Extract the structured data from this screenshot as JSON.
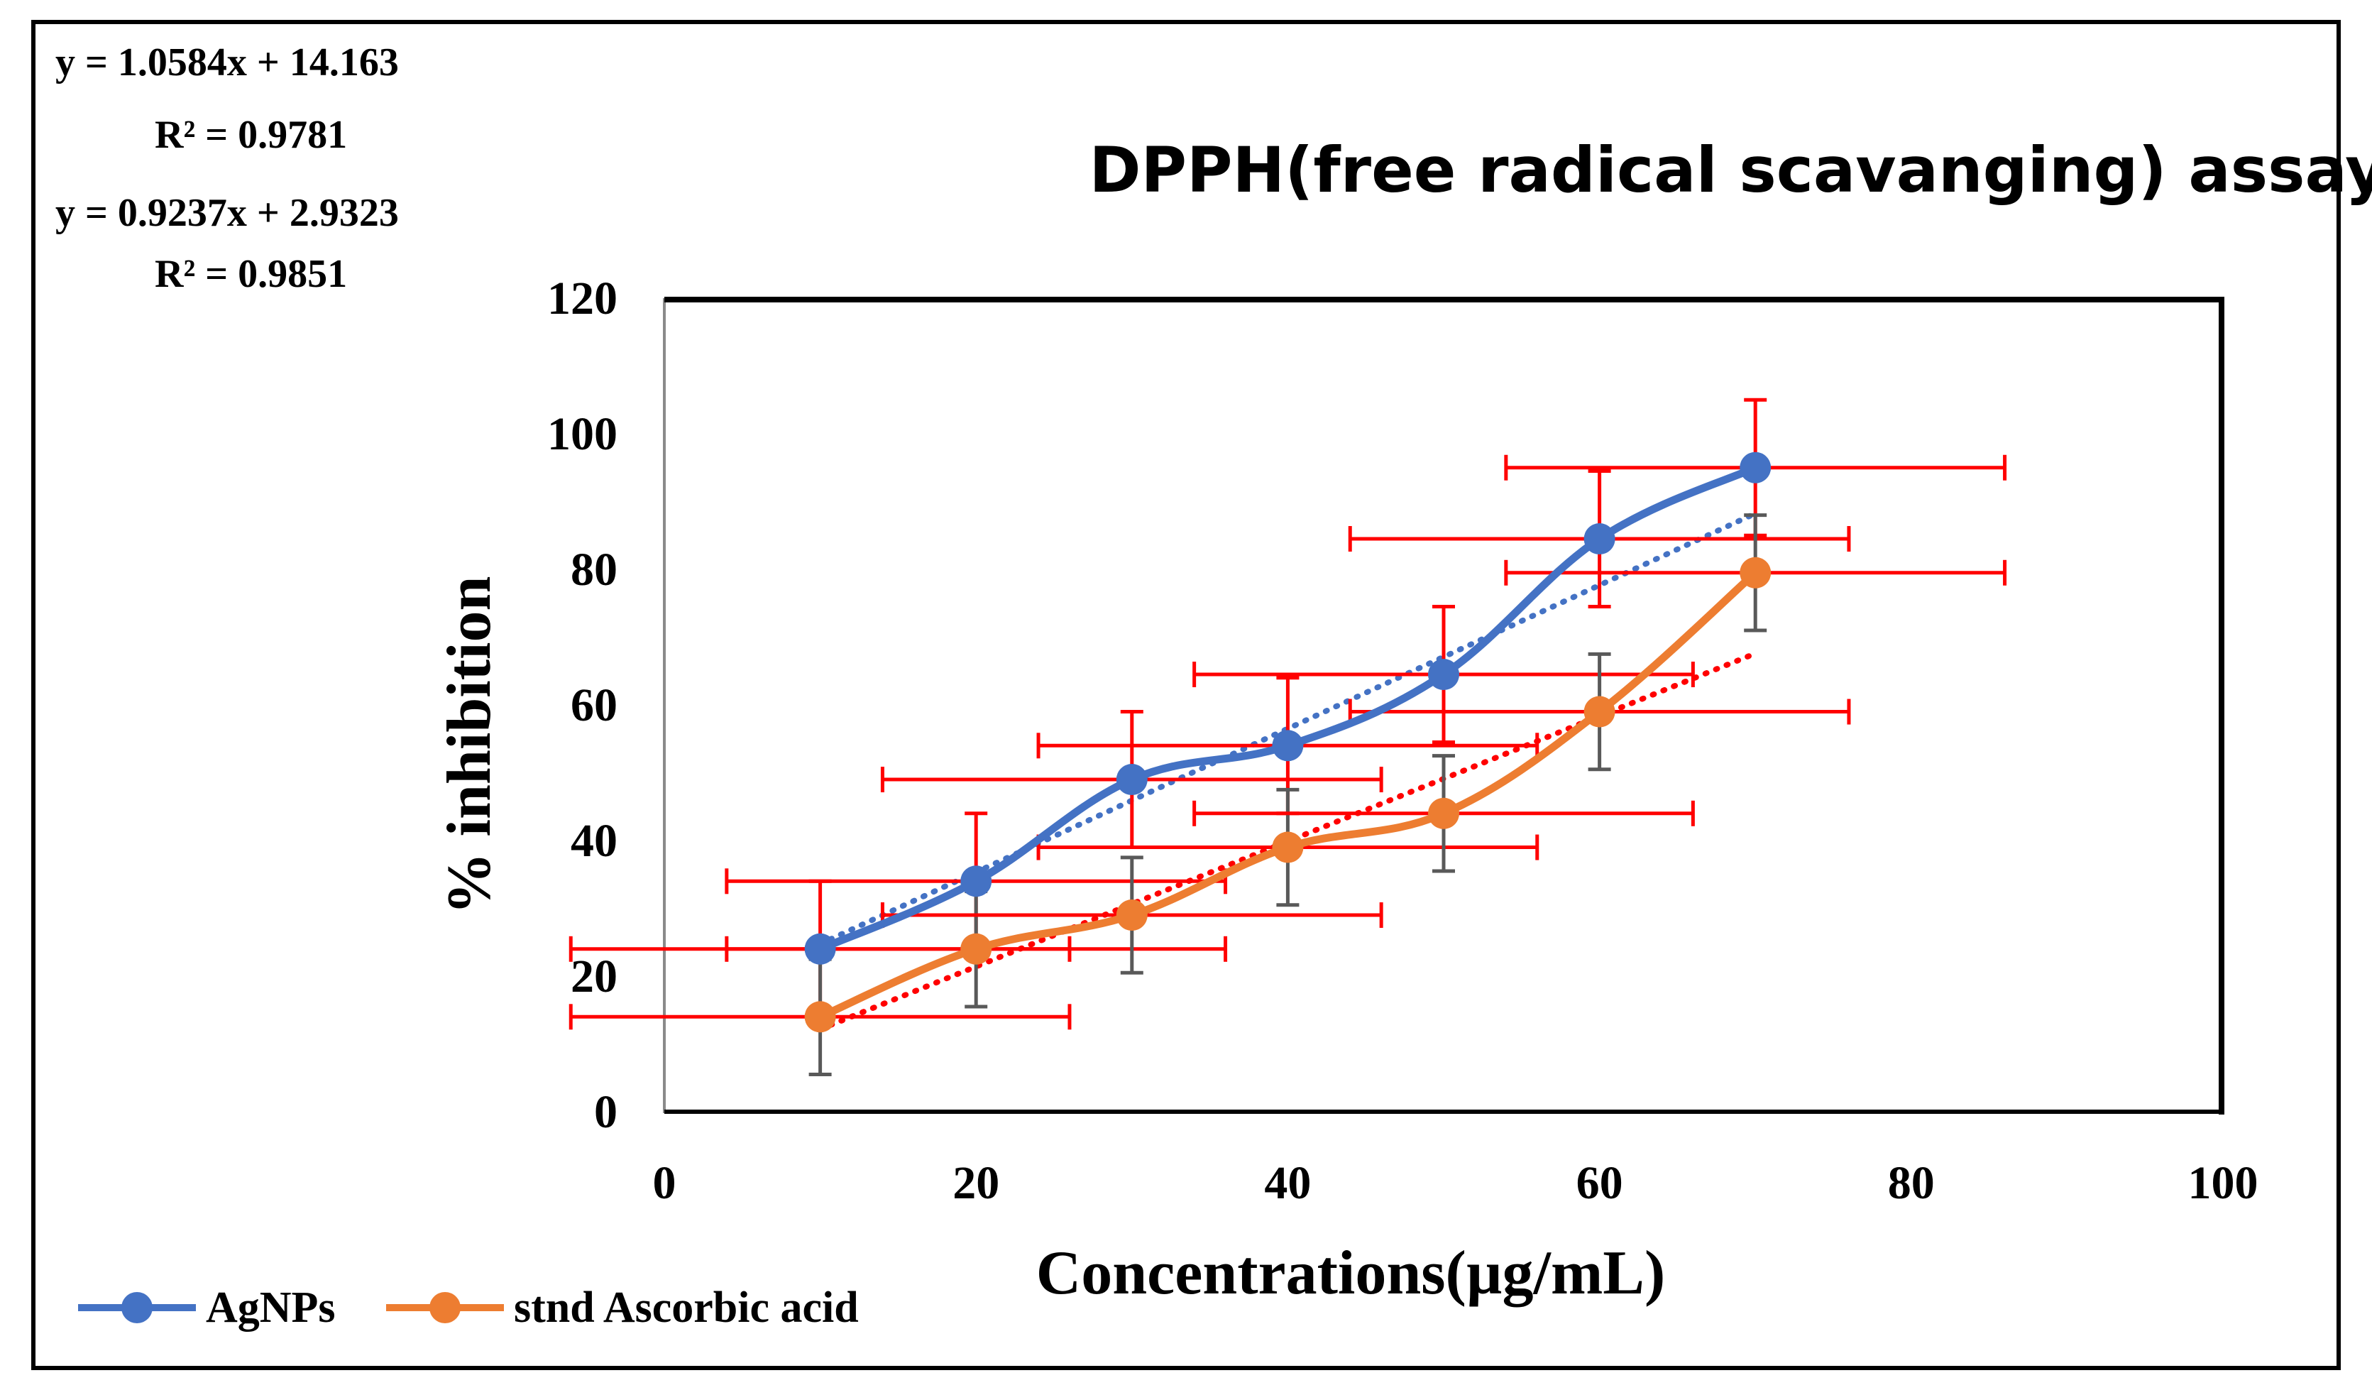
{
  "equations": [
    {
      "equation": "y = 1.0584x + 14.163",
      "r2": "R² = 0.9781"
    },
    {
      "equation": "y = 0.9237x + 2.9323",
      "r2": "R² = 0.9851"
    }
  ],
  "chart_data": {
    "type": "line",
    "title": "DPPH(free radical scavanging) assay",
    "xlabel": "Concentrations(µg/mL)",
    "ylabel": "% inhibition",
    "xlim": [
      0,
      100
    ],
    "ylim": [
      0,
      120
    ],
    "x_ticks": [
      0,
      20,
      40,
      60,
      80,
      100
    ],
    "y_ticks": [
      0,
      20,
      40,
      60,
      80,
      100,
      120
    ],
    "grid": false,
    "legend_position": "bottom-left",
    "series": [
      {
        "name": "AgNPs",
        "color": "#4472C4",
        "x": [
          10,
          20,
          30,
          40,
          50,
          60,
          70
        ],
        "y": [
          24,
          34,
          49,
          54,
          64.5,
          84.5,
          95
        ],
        "y_error": 10,
        "x_error": 16,
        "y_error_color": "#FF0000",
        "x_error_color": "#FF0000",
        "trendline": {
          "slope": 1.0584,
          "intercept": 14.163,
          "color": "#4472C4"
        }
      },
      {
        "name": "stnd Ascorbic acid",
        "color": "#ED7D31",
        "x": [
          10,
          20,
          30,
          40,
          50,
          60,
          70
        ],
        "y": [
          14,
          24,
          29,
          39,
          44,
          59,
          79.5
        ],
        "y_error": 8.5,
        "x_error": 16,
        "y_error_color": "#595959",
        "x_error_color": "#FF0000",
        "trendline": {
          "slope": 0.9237,
          "intercept": 2.9323,
          "color": "#FF0000"
        }
      }
    ]
  }
}
